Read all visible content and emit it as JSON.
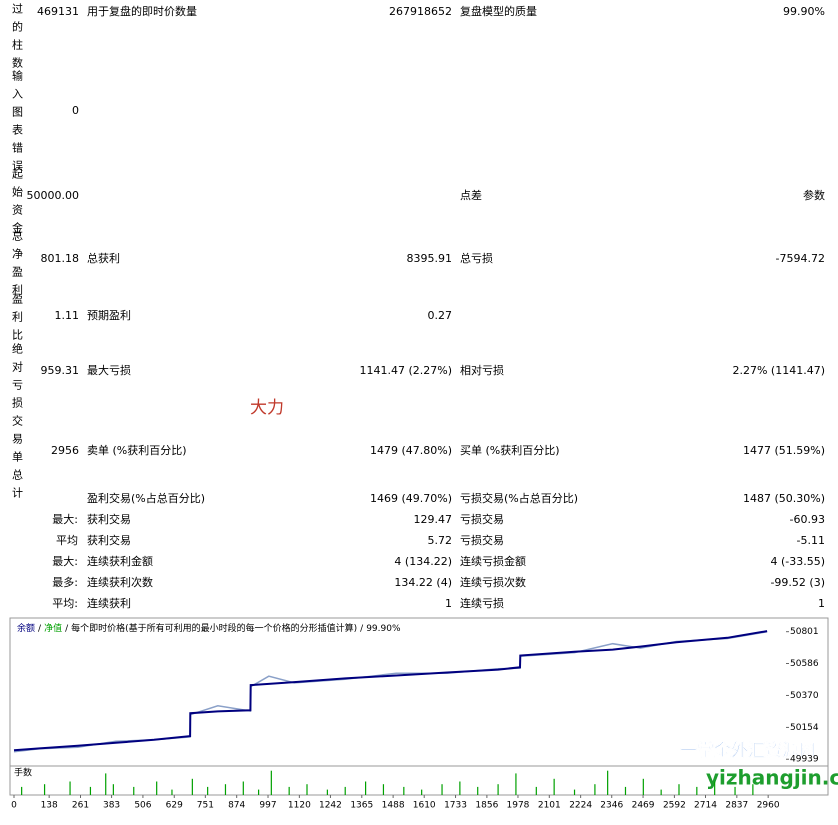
{
  "report": {
    "rows": [
      {
        "side_label": "过的柱数",
        "side_value": "469131",
        "left_label": "用于复盘的即时价数量",
        "left_value": "267918652",
        "right_label": "复盘模型的质量",
        "right_value": "99.90%"
      },
      {
        "side_label": "输入图表错误",
        "side_value": "0"
      },
      {
        "side_label": "起始资金",
        "side_value": "50000.00",
        "right_label": "点差",
        "right_value": "参数"
      },
      {
        "side_label": "总净盈利",
        "side_value": "801.18",
        "left_label": "总获利",
        "left_value": "8395.91",
        "right_label": "总亏损",
        "right_value": "-7594.72"
      },
      {
        "side_label": "盈利比",
        "side_value": "1.11",
        "left_label": "预期盈利",
        "left_value": "0.27"
      },
      {
        "side_label": "绝对亏损",
        "side_value": "959.31",
        "left_label": "最大亏损",
        "left_value": "1141.47 (2.27%)",
        "right_label": "相对亏损",
        "right_value": "2.27% (1141.47)"
      },
      {
        "side_label": "交易单总计",
        "side_value": "2956",
        "left_label": "卖单 (%获利百分比)",
        "left_value": "1479 (47.80%)",
        "right_label": "买单 (%获利百分比)",
        "right_value": "1477 (51.59%)"
      }
    ],
    "stats": [
      {
        "left_label": "盈利交易(%占总百分比)",
        "left_value": "1469 (49.70%)",
        "right_label": "亏损交易(%占总百分比)",
        "right_value": "1487 (50.30%)"
      },
      {
        "prefix": "最大:",
        "left_label": "获利交易",
        "left_value": "129.47",
        "right_label": "亏损交易",
        "right_value": "-60.93"
      },
      {
        "prefix": "平均",
        "left_label": "获利交易",
        "left_value": "5.72",
        "right_label": "亏损交易",
        "right_value": "-5.11"
      },
      {
        "prefix": "最大:",
        "left_label": "连续获利金额",
        "left_value": "4 (134.22)",
        "right_label": "连续亏损金额",
        "right_value": "4 (-33.55)"
      },
      {
        "prefix": "最多:",
        "left_label": "连续获利次数",
        "left_value": "134.22 (4)",
        "right_label": "连续亏损次数",
        "right_value": "-99.52 (3)"
      },
      {
        "prefix": "平均:",
        "left_label": "连续获利",
        "left_value": "1",
        "right_label": "连续亏损",
        "right_value": "1"
      }
    ],
    "stamp": "大力"
  },
  "chart_data": {
    "type": "line",
    "separator": "/",
    "note": "每个即时价格(基于所有可利用的最小时段的每一个价格的分形插值计算)",
    "quality": "99.90%",
    "x": [
      0,
      100,
      250,
      400,
      550,
      691,
      692,
      800,
      928,
      929,
      1000,
      1100,
      1300,
      1500,
      1700,
      1900,
      1986,
      1987,
      2200,
      2350,
      2458,
      2600,
      2800,
      2956
    ],
    "series": [
      {
        "name": "余额",
        "color": "#00007f",
        "values": [
          50000,
          50012,
          50030,
          50050,
          50070,
          50095,
          50250,
          50262,
          50270,
          50440,
          50448,
          50460,
          50485,
          50505,
          50525,
          50545,
          50560,
          50640,
          50665,
          50680,
          50700,
          50730,
          50760,
          50805
        ]
      },
      {
        "name": "净值",
        "color": "#8aa0c8",
        "values": [
          49990,
          50010,
          50020,
          50060,
          50070,
          50090,
          50240,
          50300,
          50265,
          50430,
          50500,
          50455,
          50480,
          50520,
          50520,
          50550,
          50555,
          50635,
          50660,
          50720,
          50690,
          50735,
          50755,
          50800
        ]
      }
    ],
    "xlim": [
      0,
      3030
    ],
    "xticks": [
      0,
      138,
      261,
      383,
      506,
      629,
      751,
      874,
      997,
      1120,
      1242,
      1365,
      1488,
      1610,
      1733,
      1856,
      1978,
      2101,
      2224,
      2346,
      2469,
      2592,
      2714,
      2837,
      2960
    ],
    "ylim": [
      49900,
      50880
    ],
    "yticks": [
      49939,
      50154,
      50370,
      50586,
      50801
    ],
    "volume": {
      "label": "手数",
      "color": "#00a000",
      "ylim": [
        0,
        10
      ],
      "x": [
        30,
        120,
        220,
        300,
        360,
        390,
        470,
        560,
        620,
        700,
        760,
        830,
        900,
        960,
        1010,
        1080,
        1150,
        1230,
        1300,
        1380,
        1450,
        1530,
        1600,
        1680,
        1750,
        1820,
        1900,
        1970,
        2050,
        2120,
        2200,
        2280,
        2330,
        2400,
        2470,
        2540,
        2610,
        2680,
        2750,
        2830,
        2900
      ],
      "values": [
        3,
        4,
        5,
        3,
        8,
        4,
        3,
        5,
        2,
        6,
        3,
        4,
        5,
        2,
        9,
        3,
        4,
        2,
        3,
        5,
        4,
        3,
        2,
        4,
        5,
        3,
        4,
        8,
        3,
        6,
        2,
        4,
        9,
        3,
        6,
        2,
        4,
        3,
        5,
        3,
        4
      ]
    }
  },
  "watermark": {
    "name": "一掌金外汇资源网",
    "site": "yizhangjin.com"
  }
}
